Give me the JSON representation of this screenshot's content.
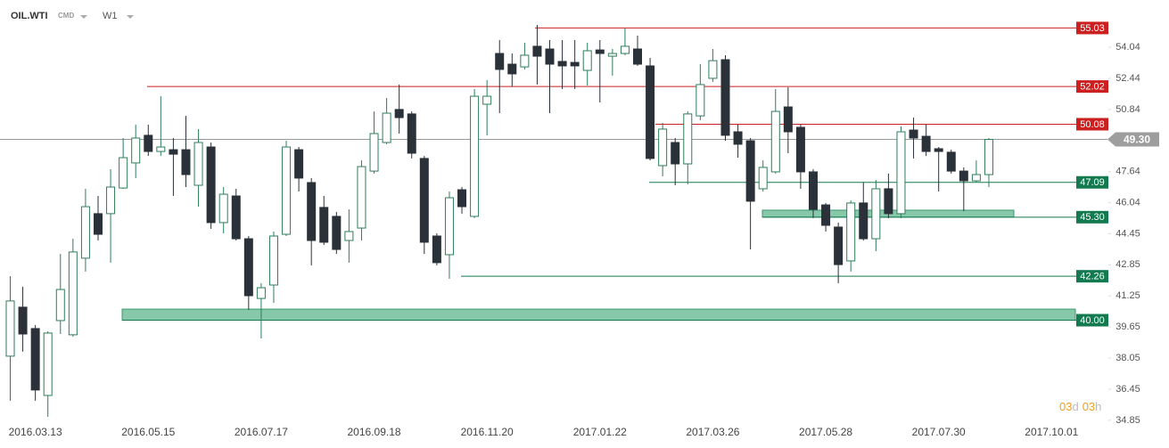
{
  "chart_data": {
    "type": "candlestick",
    "symbol": "OIL.WTI",
    "group": "CMD",
    "timeframe": "W1",
    "countdown": [
      "03",
      "d",
      "03",
      "h"
    ],
    "categories": [
      null,
      null,
      "2016.03.13",
      null,
      null,
      null,
      null,
      null,
      null,
      null,
      null,
      "2016.05.15",
      null,
      null,
      null,
      null,
      null,
      null,
      null,
      null,
      "2016.07.17",
      null,
      null,
      null,
      null,
      null,
      null,
      null,
      null,
      "2016.09.18",
      null,
      null,
      null,
      null,
      null,
      null,
      null,
      null,
      "2016.11.20",
      null,
      null,
      null,
      null,
      null,
      null,
      null,
      null,
      "2017.01.22",
      null,
      null,
      null,
      null,
      null,
      null,
      null,
      null,
      "2017.03.26",
      null,
      null,
      null,
      null,
      null,
      null,
      null,
      null,
      "2017.05.28",
      null,
      null,
      null,
      null,
      null,
      null,
      null,
      null,
      "2017.07.30",
      null,
      null,
      null,
      null,
      null,
      null,
      null,
      null,
      "2017.10.01"
    ],
    "open": [
      38.15,
      40.67,
      39.57,
      36.13,
      39.98,
      39.25,
      43.19,
      45.48,
      45.48,
      46.8,
      48.09,
      49.51,
      48.68,
      48.77,
      48.77,
      46.94,
      48.91,
      45.02,
      46.39,
      44.19,
      41.12,
      41.81,
      44.42,
      48.77,
      47.08,
      45.8,
      45.34,
      44.1,
      44.74,
      47.67,
      49.14,
      50.84,
      50.61,
      48.32,
      44.33,
      43.37,
      46.71,
      45.34,
      51.11,
      53.72,
      53.17,
      53.03,
      54.09,
      53.95,
      53.31,
      53.26,
      52.85,
      53.9,
      53.58,
      53.72,
      53.95,
      53.08,
      47.95,
      49.14,
      48.04,
      50.51,
      52.44,
      53.4,
      49.69,
      49.23,
      46.76,
      47.63,
      50.97,
      49.92,
      47.63,
      45.93,
      44.79,
      43.05,
      46.03,
      44.19,
      46.76,
      45.48,
      49.78,
      49.46,
      48.82,
      48.64,
      47.67,
      47.17,
      47.49,
      null,
      null,
      null,
      null,
      null
    ],
    "high": [
      42.27,
      41.72,
      39.75,
      39.43,
      43.41,
      44.19,
      46.76,
      46.39,
      47.77,
      49.37,
      50.06,
      50.06,
      51.52,
      49.37,
      50.51,
      49.83,
      49.14,
      46.85,
      46.76,
      44.33,
      41.9,
      44.56,
      49.23,
      48.91,
      47.31,
      46.39,
      45.57,
      45.7,
      48.22,
      50.74,
      51.43,
      52.12,
      50.74,
      48.45,
      44.47,
      46.62,
      46.85,
      51.89,
      52.35,
      54.41,
      53.72,
      54.27,
      55.19,
      54.41,
      54.41,
      54.41,
      54.27,
      54.41,
      53.95,
      55.0,
      54.64,
      53.49,
      50.15,
      49.37,
      50.74,
      53.17,
      53.95,
      53.63,
      50.06,
      49.37,
      48.22,
      51.89,
      51.98,
      50.06,
      47.77,
      46.03,
      45.02,
      46.16,
      47.08,
      47.22,
      47.54,
      49.97,
      50.42,
      50.06,
      48.91,
      48.77,
      47.86,
      48.22,
      49.37,
      null,
      null,
      null,
      null,
      null
    ],
    "low": [
      35.86,
      38.38,
      35.86,
      35.03,
      39.29,
      39.15,
      42.5,
      44.1,
      42.96,
      46.76,
      47.31,
      48.45,
      48.45,
      46.39,
      46.85,
      45.84,
      44.7,
      44.47,
      44.1,
      40.53,
      39.06,
      40.89,
      44.33,
      46.62,
      42.82,
      43.87,
      43.41,
      42.96,
      44.1,
      47.54,
      49.05,
      49.6,
      48.32,
      43.41,
      42.82,
      42.13,
      45.48,
      45.25,
      49.51,
      50.65,
      52.03,
      52.9,
      52.12,
      50.65,
      51.89,
      51.89,
      52.07,
      51.2,
      52.58,
      53.63,
      53.08,
      48.22,
      47.4,
      46.94,
      46.99,
      50.29,
      52.26,
      49.23,
      48.36,
      43.64,
      46.62,
      47.54,
      48.59,
      46.76,
      45.25,
      44.56,
      41.9,
      42.5,
      44.1,
      43.55,
      45.25,
      45.25,
      48.32,
      48.45,
      46.62,
      47.54,
      45.61,
      47.08,
      46.85,
      null,
      null,
      null,
      null,
      null
    ],
    "close": [
      40.99,
      39.29,
      36.41,
      39.34,
      41.58,
      43.51,
      45.84,
      44.42,
      46.85,
      48.36,
      49.37,
      48.68,
      48.91,
      48.54,
      47.49,
      49.14,
      45.02,
      46.48,
      44.19,
      41.26,
      41.67,
      44.33,
      48.91,
      47.31,
      44.1,
      44.01,
      43.64,
      44.56,
      47.9,
      49.6,
      50.65,
      50.42,
      48.59,
      44.01,
      42.96,
      46.3,
      45.84,
      51.52,
      51.52,
      52.9,
      52.67,
      53.63,
      53.58,
      53.17,
      53.08,
      53.08,
      53.86,
      53.72,
      53.72,
      54.09,
      53.17,
      48.32,
      49.83,
      48.04,
      50.61,
      52.12,
      53.35,
      49.51,
      49.05,
      46.12,
      47.86,
      50.74,
      49.69,
      47.63,
      45.7,
      44.88,
      42.86,
      46.03,
      44.19,
      46.76,
      45.48,
      49.69,
      49.37,
      48.68,
      48.68,
      47.67,
      47.17,
      47.49,
      49.3,
      null,
      null,
      null,
      null,
      null
    ],
    "up_color": "#2e7d5b",
    "down_color": "#2b3139",
    "ylim": [
      34.48,
      56.47
    ],
    "yticks": [
      34.85,
      36.45,
      38.05,
      39.65,
      41.25,
      42.85,
      44.45,
      46.04,
      47.64,
      50.84,
      52.44,
      54.04
    ],
    "levels": [
      {
        "value": 55.03,
        "label": "55.03",
        "color": "#cc1f1f"
      },
      {
        "value": 52.02,
        "label": "52.02",
        "color": "#cc1f1f"
      },
      {
        "value": 50.08,
        "label": "50.08",
        "color": "#cc1f1f"
      },
      {
        "value": 47.09,
        "label": "47.09",
        "color": "#137a4f"
      },
      {
        "value": 45.3,
        "label": "45.30",
        "color": "#137a4f"
      },
      {
        "value": 42.26,
        "label": "42.26",
        "color": "#137a4f"
      },
      {
        "value": 40,
        "label": "40.00",
        "color": "#137a4f"
      }
    ],
    "zones": [
      {
        "low": 45.3,
        "high": 45.66,
        "color": "#5fb58e"
      },
      {
        "low": 40,
        "high": 40.57,
        "color": "#5fb58e"
      }
    ],
    "last": {
      "value": 49.3,
      "label": "49.30",
      "color": "#9e9e9e"
    }
  }
}
